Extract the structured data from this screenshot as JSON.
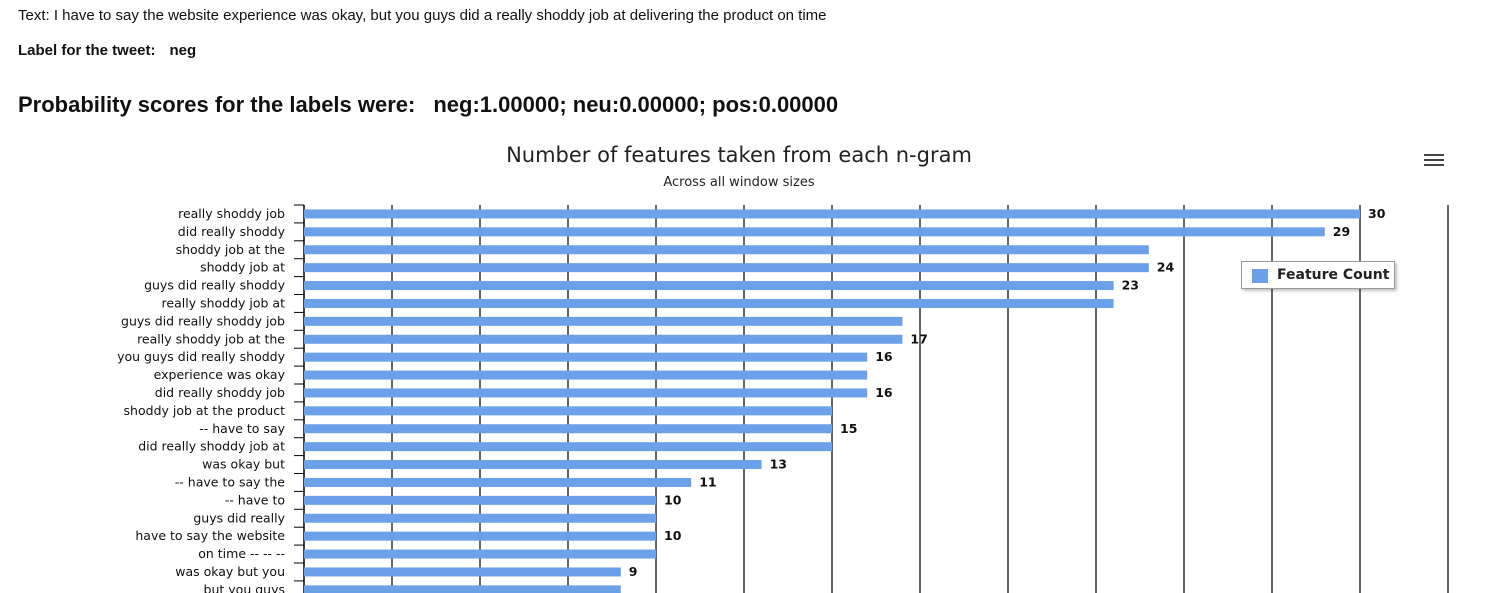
{
  "tweet": {
    "text": "Text: I have to say the website experience was okay, but you guys did a really shoddy job at delivering the product on time",
    "label_prefix": "Label for the tweet:",
    "label_value": "neg"
  },
  "probabilities": {
    "prefix": "Probability scores for the labels were:",
    "value": "neg:1.00000; neu:0.00000; pos:0.00000"
  },
  "colors": {
    "bar": "#6ca0e8",
    "grid": "#000000",
    "text": "#000000"
  },
  "icons": {
    "menu": "hamburger-menu-icon"
  },
  "chart_data": {
    "type": "bar",
    "orientation": "horizontal",
    "title": "Number of features taken from each n-gram",
    "subtitle": "Across all window sizes",
    "categories": [
      "really shoddy job",
      "did really shoddy",
      "shoddy job at the",
      "shoddy job at",
      "guys did really shoddy",
      "really shoddy job at",
      "guys did really shoddy job",
      "really shoddy job at the",
      "you guys did really shoddy",
      "experience was okay",
      "did really shoddy job",
      "shoddy job at the product",
      "-- have to say",
      "did really shoddy job at",
      "was okay but",
      "-- have to say the",
      "-- have to",
      "guys did really",
      "have to say the website",
      "on time -- -- --",
      "was okay but you",
      "but you guys"
    ],
    "series": [
      {
        "name": "Feature Count",
        "values": [
          30,
          29,
          24,
          24,
          23,
          23,
          17,
          17,
          16,
          16,
          16,
          15,
          15,
          15,
          13,
          11,
          10,
          10,
          10,
          10,
          9,
          9
        ]
      }
    ],
    "data_labels": [
      "30",
      "29",
      "",
      "24",
      "23",
      "",
      "",
      "17",
      "16",
      "",
      "16",
      "",
      "15",
      "",
      "13",
      "11",
      "10",
      "",
      "10",
      "",
      "9",
      ""
    ],
    "xlim": [
      0,
      32.5
    ],
    "grid_step": 2.5,
    "grid": true,
    "legend": "right"
  }
}
